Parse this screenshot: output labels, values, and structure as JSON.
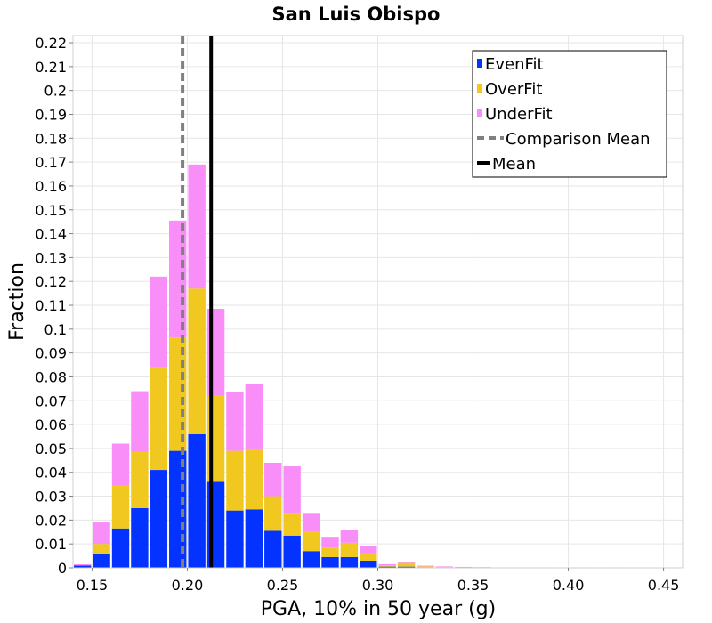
{
  "chart_data": {
    "type": "bar",
    "stacked": true,
    "title": "San Luis Obispo",
    "xlabel": "PGA, 10% in 50 year (g)",
    "ylabel": "Fraction",
    "xlim": [
      0.14,
      0.46
    ],
    "ylim": [
      0,
      0.223
    ],
    "grid": true,
    "legend_position": "top-right",
    "bin_width": 0.01,
    "x_ticks": [
      "0.15",
      "0.20",
      "0.25",
      "0.30",
      "0.35",
      "0.40",
      "0.45"
    ],
    "x_tick_values": [
      0.15,
      0.2,
      0.25,
      0.3,
      0.35,
      0.4,
      0.45
    ],
    "y_ticks": [
      "0",
      "0.01",
      "0.02",
      "0.03",
      "0.04",
      "0.05",
      "0.06",
      "0.07",
      "0.08",
      "0.09",
      "0.1",
      "0.11",
      "0.12",
      "0.13",
      "0.14",
      "0.15",
      "0.16",
      "0.17",
      "0.18",
      "0.19",
      "0.2",
      "0.21",
      "0.22"
    ],
    "y_tick_values": [
      0,
      0.01,
      0.02,
      0.03,
      0.04,
      0.05,
      0.06,
      0.07,
      0.08,
      0.09,
      0.1,
      0.11,
      0.12,
      0.13,
      0.14,
      0.15,
      0.16,
      0.17,
      0.18,
      0.19,
      0.2,
      0.21,
      0.22
    ],
    "bin_centers": [
      0.145,
      0.155,
      0.165,
      0.175,
      0.185,
      0.195,
      0.205,
      0.215,
      0.225,
      0.235,
      0.245,
      0.255,
      0.265,
      0.275,
      0.285,
      0.295,
      0.305,
      0.315,
      0.325,
      0.335,
      0.345,
      0.355,
      0.365,
      0.375,
      0.385,
      0.395,
      0.405,
      0.415,
      0.425,
      0.435,
      0.445,
      0.455
    ],
    "series": [
      {
        "name": "EvenFit",
        "color": "#0433ff",
        "values": [
          0.001,
          0.006,
          0.0165,
          0.025,
          0.041,
          0.049,
          0.056,
          0.036,
          0.024,
          0.0245,
          0.0155,
          0.0135,
          0.007,
          0.0045,
          0.0045,
          0.003,
          0.0005,
          0.0005,
          0.0002,
          0.0001,
          0.0001,
          0,
          0,
          0,
          0,
          0,
          0,
          0,
          0,
          0,
          0,
          0
        ]
      },
      {
        "name": "OverFit",
        "color": "#f0c820",
        "values": [
          0,
          0.004,
          0.018,
          0.0235,
          0.043,
          0.0475,
          0.061,
          0.036,
          0.025,
          0.0255,
          0.0145,
          0.0095,
          0.008,
          0.004,
          0.006,
          0.003,
          0.0005,
          0.0015,
          0.0004,
          0.0002,
          0.0001,
          0.0001,
          0,
          0,
          0,
          0,
          0,
          0,
          0,
          0,
          0,
          0
        ]
      },
      {
        "name": "UnderFit",
        "color": "#f98ef8",
        "values": [
          0.0005,
          0.009,
          0.0175,
          0.0255,
          0.038,
          0.049,
          0.052,
          0.0365,
          0.0245,
          0.027,
          0.014,
          0.0195,
          0.008,
          0.0045,
          0.0055,
          0.003,
          0.0005,
          0.0005,
          0.0003,
          0.0003,
          0.0002,
          0.0002,
          0.0002,
          0.0002,
          0.0002,
          0.0001,
          0.0002,
          0.0001,
          0.0002,
          0.0001,
          0,
          0.0002
        ]
      }
    ],
    "reference_lines": [
      {
        "name": "Comparison Mean",
        "x": 0.1975,
        "color": "#808080",
        "style": "dashed"
      },
      {
        "name": "Mean",
        "x": 0.2125,
        "color": "#000000",
        "style": "solid"
      }
    ],
    "legend": [
      "EvenFit",
      "OverFit",
      "UnderFit",
      "Comparison Mean",
      "Mean"
    ]
  }
}
